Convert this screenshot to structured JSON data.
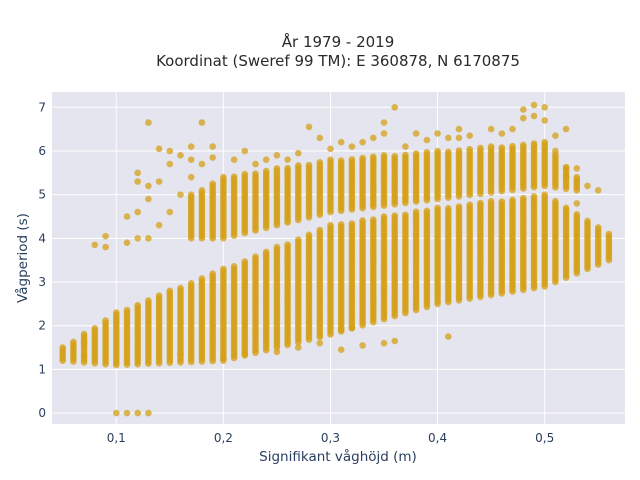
{
  "chart_data": {
    "type": "scatter",
    "title_line1": "År 1979 - 2019",
    "title_line2": "Koordinat (Sweref 99 TM): E 360878, N 6170875",
    "xlabel": "Signifikant våghöjd (m)",
    "ylabel": "Vågperiod (s)",
    "xlim": [
      0.04,
      0.575
    ],
    "ylim": [
      -0.25,
      7.35
    ],
    "x_ticks": [
      0.1,
      0.2,
      0.3,
      0.4,
      0.5
    ],
    "x_tick_labels": [
      "0,1",
      "0,2",
      "0,3",
      "0,4",
      "0,5"
    ],
    "y_ticks": [
      0,
      1,
      2,
      3,
      4,
      5,
      6,
      7
    ],
    "y_tick_labels": [
      "0",
      "1",
      "2",
      "3",
      "4",
      "5",
      "6",
      "7"
    ],
    "grid": true,
    "legend": "none",
    "marker_color": "#d4a017",
    "plot_bg": "#e5e5ef",
    "x_step": 0.01,
    "lower_band": {
      "x_start": 0.05,
      "x_end": 0.56,
      "y_low_points": [
        [
          0.05,
          1.2
        ],
        [
          0.1,
          1.1
        ],
        [
          0.2,
          1.2
        ],
        [
          0.3,
          1.8
        ],
        [
          0.4,
          2.5
        ],
        [
          0.5,
          2.9
        ],
        [
          0.56,
          3.5
        ]
      ],
      "y_high_points": [
        [
          0.05,
          1.5
        ],
        [
          0.1,
          2.3
        ],
        [
          0.2,
          3.3
        ],
        [
          0.3,
          4.3
        ],
        [
          0.4,
          4.7
        ],
        [
          0.5,
          5.0
        ],
        [
          0.56,
          4.1
        ]
      ],
      "y_spacing": 0.05
    },
    "upper_band": {
      "x_start": 0.17,
      "x_end": 0.53,
      "y_low_points": [
        [
          0.17,
          4.0
        ],
        [
          0.2,
          4.0
        ],
        [
          0.3,
          4.6
        ],
        [
          0.4,
          4.9
        ],
        [
          0.5,
          5.2
        ],
        [
          0.53,
          5.1
        ]
      ],
      "y_high_points": [
        [
          0.17,
          5.0
        ],
        [
          0.2,
          5.4
        ],
        [
          0.3,
          5.8
        ],
        [
          0.4,
          6.0
        ],
        [
          0.5,
          6.2
        ],
        [
          0.53,
          5.4
        ]
      ],
      "y_spacing": 0.05
    },
    "scattered_points": [
      [
        0.08,
        3.85
      ],
      [
        0.09,
        3.8
      ],
      [
        0.09,
        4.05
      ],
      [
        0.11,
        3.9
      ],
      [
        0.11,
        4.5
      ],
      [
        0.12,
        4.6
      ],
      [
        0.12,
        4.0
      ],
      [
        0.12,
        5.3
      ],
      [
        0.12,
        5.5
      ],
      [
        0.13,
        6.65
      ],
      [
        0.13,
        4.0
      ],
      [
        0.13,
        4.9
      ],
      [
        0.13,
        5.2
      ],
      [
        0.14,
        6.05
      ],
      [
        0.14,
        5.3
      ],
      [
        0.14,
        4.3
      ],
      [
        0.15,
        4.6
      ],
      [
        0.15,
        5.7
      ],
      [
        0.15,
        6.0
      ],
      [
        0.16,
        5.9
      ],
      [
        0.16,
        5.0
      ],
      [
        0.17,
        5.8
      ],
      [
        0.17,
        6.1
      ],
      [
        0.17,
        5.4
      ],
      [
        0.18,
        6.65
      ],
      [
        0.18,
        5.7
      ],
      [
        0.19,
        5.85
      ],
      [
        0.19,
        6.1
      ],
      [
        0.21,
        5.8
      ],
      [
        0.22,
        6.0
      ],
      [
        0.23,
        5.7
      ],
      [
        0.24,
        5.8
      ],
      [
        0.25,
        5.9
      ],
      [
        0.26,
        5.8
      ],
      [
        0.27,
        5.95
      ],
      [
        0.28,
        6.55
      ],
      [
        0.29,
        6.3
      ],
      [
        0.3,
        6.05
      ],
      [
        0.31,
        6.2
      ],
      [
        0.32,
        6.1
      ],
      [
        0.33,
        6.2
      ],
      [
        0.34,
        6.3
      ],
      [
        0.35,
        6.4
      ],
      [
        0.35,
        6.65
      ],
      [
        0.36,
        7.0
      ],
      [
        0.37,
        6.1
      ],
      [
        0.38,
        6.4
      ],
      [
        0.39,
        6.25
      ],
      [
        0.4,
        6.4
      ],
      [
        0.41,
        6.3
      ],
      [
        0.42,
        6.5
      ],
      [
        0.42,
        6.3
      ],
      [
        0.43,
        6.35
      ],
      [
        0.45,
        6.5
      ],
      [
        0.46,
        6.4
      ],
      [
        0.47,
        6.5
      ],
      [
        0.48,
        6.75
      ],
      [
        0.48,
        6.95
      ],
      [
        0.49,
        7.05
      ],
      [
        0.49,
        6.8
      ],
      [
        0.5,
        7.0
      ],
      [
        0.5,
        6.7
      ],
      [
        0.51,
        6.35
      ],
      [
        0.52,
        6.5
      ],
      [
        0.51,
        6.0
      ],
      [
        0.52,
        5.6
      ],
      [
        0.53,
        5.6
      ],
      [
        0.54,
        5.2
      ],
      [
        0.55,
        5.1
      ],
      [
        0.52,
        5.4
      ],
      [
        0.53,
        4.8
      ],
      [
        0.1,
        0.0
      ],
      [
        0.11,
        0.0
      ],
      [
        0.12,
        0.0
      ],
      [
        0.13,
        0.0
      ],
      [
        0.07,
        1.6
      ],
      [
        0.07,
        1.3
      ],
      [
        0.16,
        1.35
      ],
      [
        0.2,
        1.25
      ],
      [
        0.22,
        1.35
      ],
      [
        0.25,
        1.4
      ],
      [
        0.27,
        1.5
      ],
      [
        0.29,
        1.6
      ],
      [
        0.31,
        1.45
      ],
      [
        0.33,
        1.55
      ],
      [
        0.35,
        1.6
      ],
      [
        0.36,
        1.65
      ],
      [
        0.31,
        1.9
      ],
      [
        0.32,
        1.95
      ],
      [
        0.41,
        1.75
      ]
    ]
  }
}
